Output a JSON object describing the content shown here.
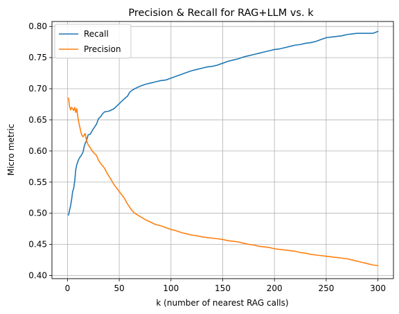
{
  "chart_data": {
    "type": "line",
    "title": "Precision & Recall for RAG+LLM vs. k",
    "xlabel": "k (number of nearest RAG calls)",
    "ylabel": "Micro metric",
    "xlim": [
      -15,
      315
    ],
    "ylim": [
      0.395,
      0.808
    ],
    "xticks": [
      0,
      50,
      100,
      150,
      200,
      250,
      300
    ],
    "yticks": [
      0.4,
      0.45,
      0.5,
      0.55,
      0.6,
      0.65,
      0.7,
      0.75,
      0.8
    ],
    "grid": true,
    "legend_position": "upper-left",
    "series": [
      {
        "name": "Recall",
        "color": "#1f77b4",
        "x": [
          1,
          2,
          3,
          4,
          5,
          6,
          7,
          8,
          9,
          10,
          11,
          12,
          13,
          14,
          15,
          16,
          17,
          18,
          19,
          20,
          22,
          24,
          26,
          28,
          30,
          32,
          34,
          36,
          40,
          45,
          50,
          55,
          58,
          60,
          62,
          65,
          70,
          75,
          80,
          85,
          90,
          95,
          100,
          105,
          110,
          115,
          120,
          125,
          130,
          135,
          140,
          145,
          150,
          155,
          160,
          165,
          170,
          175,
          180,
          185,
          190,
          195,
          200,
          205,
          210,
          215,
          220,
          225,
          230,
          235,
          240,
          245,
          250,
          255,
          260,
          265,
          270,
          275,
          280,
          285,
          290,
          295,
          300
        ],
        "values": [
          0.497,
          0.505,
          0.512,
          0.522,
          0.535,
          0.54,
          0.552,
          0.57,
          0.578,
          0.583,
          0.587,
          0.59,
          0.592,
          0.595,
          0.598,
          0.606,
          0.612,
          0.615,
          0.62,
          0.626,
          0.627,
          0.633,
          0.638,
          0.643,
          0.652,
          0.655,
          0.66,
          0.663,
          0.664,
          0.668,
          0.676,
          0.684,
          0.688,
          0.694,
          0.697,
          0.7,
          0.704,
          0.707,
          0.709,
          0.711,
          0.713,
          0.714,
          0.717,
          0.72,
          0.723,
          0.726,
          0.729,
          0.731,
          0.733,
          0.735,
          0.736,
          0.738,
          0.741,
          0.744,
          0.746,
          0.748,
          0.751,
          0.753,
          0.755,
          0.757,
          0.759,
          0.761,
          0.763,
          0.764,
          0.766,
          0.768,
          0.77,
          0.771,
          0.773,
          0.774,
          0.776,
          0.779,
          0.782,
          0.783,
          0.784,
          0.785,
          0.787,
          0.788,
          0.789,
          0.789,
          0.789,
          0.789,
          0.792
        ]
      },
      {
        "name": "Precision",
        "color": "#ff7f0e",
        "x": [
          1,
          2,
          3,
          4,
          5,
          6,
          7,
          8,
          9,
          10,
          11,
          12,
          13,
          14,
          15,
          16,
          17,
          18,
          19,
          20,
          22,
          24,
          26,
          28,
          30,
          32,
          34,
          36,
          38,
          40,
          45,
          50,
          55,
          58,
          60,
          62,
          65,
          70,
          75,
          80,
          85,
          90,
          95,
          100,
          105,
          110,
          115,
          120,
          125,
          130,
          135,
          140,
          145,
          150,
          155,
          160,
          165,
          170,
          175,
          180,
          185,
          190,
          195,
          200,
          205,
          210,
          215,
          220,
          225,
          230,
          235,
          240,
          245,
          250,
          255,
          260,
          265,
          270,
          275,
          280,
          285,
          290,
          295,
          300
        ],
        "values": [
          0.685,
          0.672,
          0.666,
          0.67,
          0.668,
          0.665,
          0.67,
          0.662,
          0.668,
          0.655,
          0.645,
          0.638,
          0.63,
          0.625,
          0.623,
          0.625,
          0.628,
          0.62,
          0.614,
          0.61,
          0.605,
          0.6,
          0.596,
          0.593,
          0.585,
          0.58,
          0.576,
          0.572,
          0.565,
          0.56,
          0.546,
          0.535,
          0.524,
          0.515,
          0.51,
          0.505,
          0.5,
          0.495,
          0.49,
          0.486,
          0.482,
          0.48,
          0.477,
          0.474,
          0.472,
          0.469,
          0.467,
          0.465,
          0.464,
          0.462,
          0.461,
          0.46,
          0.459,
          0.458,
          0.456,
          0.455,
          0.454,
          0.452,
          0.45,
          0.449,
          0.447,
          0.446,
          0.445,
          0.443,
          0.442,
          0.441,
          0.44,
          0.439,
          0.437,
          0.436,
          0.434,
          0.433,
          0.432,
          0.431,
          0.43,
          0.429,
          0.428,
          0.427,
          0.425,
          0.423,
          0.421,
          0.419,
          0.417,
          0.416
        ]
      }
    ]
  }
}
